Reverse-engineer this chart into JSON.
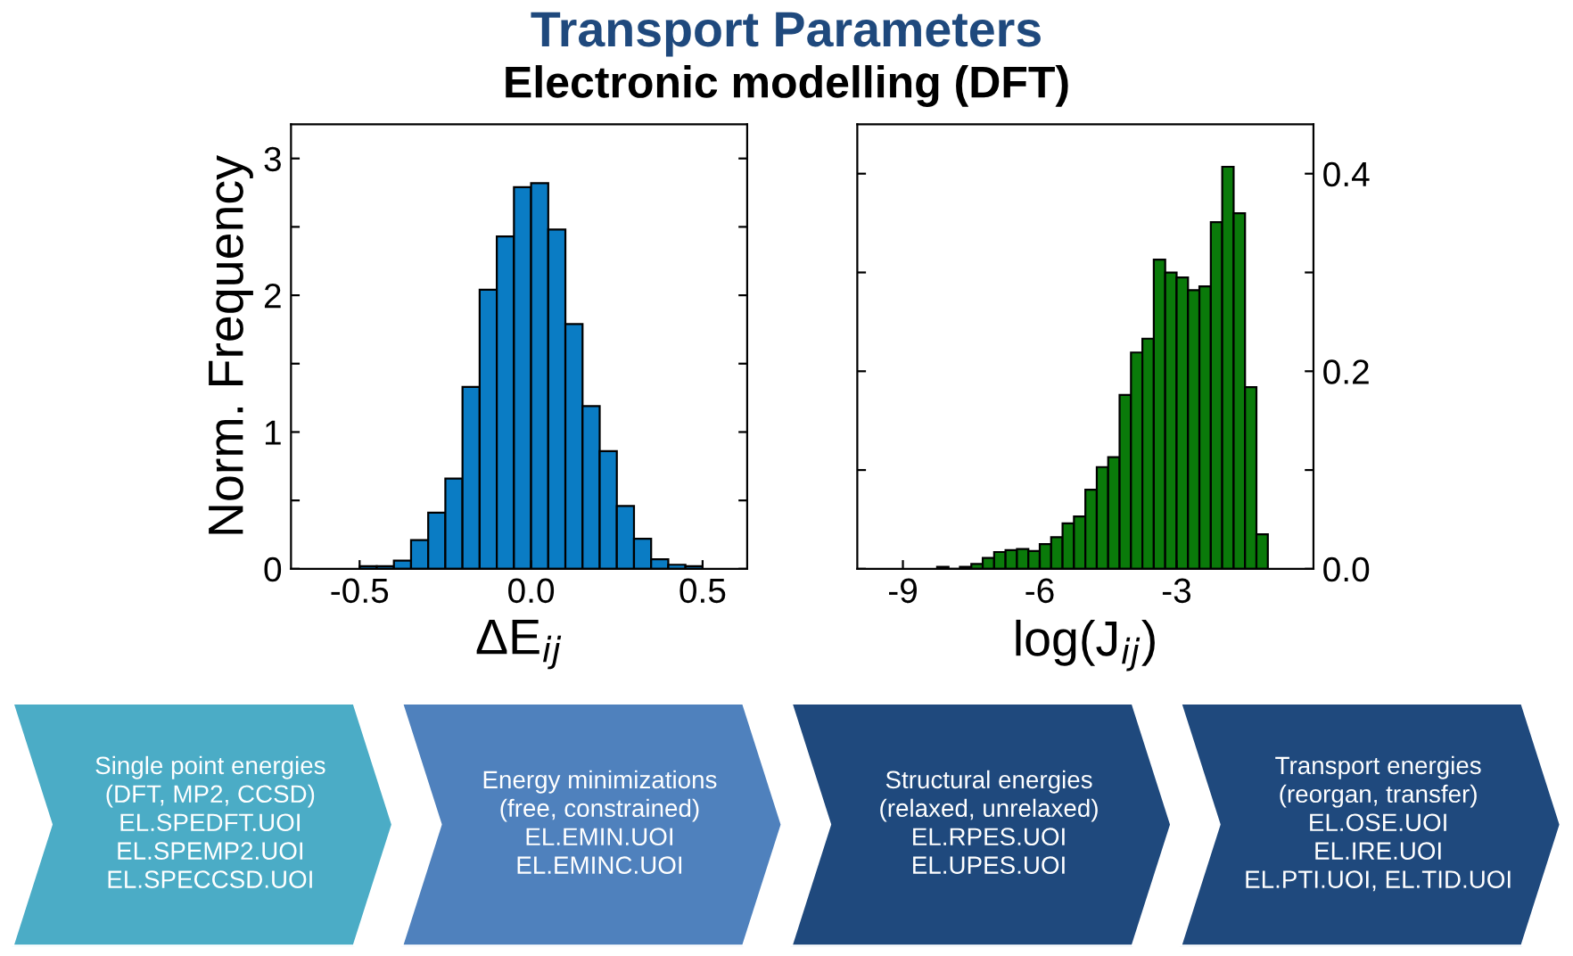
{
  "chart_data": [
    {
      "type": "histogram",
      "xlabel": "ΔE$_{ij}$",
      "ylabel": "Norm. Frequency",
      "color": "#0a7cc4",
      "bins": [
        -0.5,
        -0.45,
        -0.4,
        -0.35,
        -0.3,
        -0.25,
        -0.2,
        -0.15,
        -0.1,
        -0.05,
        0.0,
        0.05,
        0.1,
        0.15,
        0.2,
        0.25,
        0.3,
        0.35,
        0.4,
        0.45,
        0.5
      ],
      "values": [
        0.02,
        0.02,
        0.06,
        0.21,
        0.41,
        0.66,
        1.33,
        2.04,
        2.43,
        2.79,
        2.82,
        2.48,
        1.79,
        1.19,
        0.86,
        0.46,
        0.22,
        0.07,
        0.03,
        0.02
      ],
      "xlim": [
        -0.7,
        0.63
      ],
      "ylim": [
        0,
        3.25
      ],
      "xticks": [
        -0.5,
        {
          "value": 0.0,
          "label": "0.0"
        },
        0.5
      ],
      "yticks": [
        0,
        {
          "value": 0.5,
          "label": null
        },
        1,
        {
          "value": 1.5,
          "label": null
        },
        2,
        {
          "value": 2.5,
          "label": null
        },
        3
      ],
      "grid": false
    },
    {
      "type": "histogram",
      "xlabel": "log(J$_{ij}$)",
      "color": "#0a7a0a",
      "bins": [
        -8.25,
        -8.0,
        -7.75,
        -7.5,
        -7.25,
        -7.0,
        -6.75,
        -6.5,
        -6.25,
        -6.0,
        -5.75,
        -5.5,
        -5.25,
        -5.0,
        -4.75,
        -4.5,
        -4.25,
        -4.0,
        -3.75,
        -3.5,
        -3.25,
        -3.0,
        -2.75,
        -2.5,
        -2.25,
        -2.0,
        -1.75,
        -1.5,
        -1.25,
        -1.0
      ],
      "values": [
        0.002,
        0,
        0.002,
        0.005,
        0.011,
        0.017,
        0.019,
        0.02,
        0.018,
        0.025,
        0.032,
        0.046,
        0.053,
        0.08,
        0.103,
        0.113,
        0.176,
        0.219,
        0.233,
        0.313,
        0.3,
        0.295,
        0.282,
        0.286,
        0.351,
        0.407,
        0.36,
        0.184,
        0.035
      ],
      "xlim": [
        -10,
        0
      ],
      "ylim": [
        0,
        0.45
      ],
      "xticks": [
        -9,
        -6,
        -3
      ],
      "yticks": [
        {
          "value": 0.0,
          "label": "0.0"
        },
        {
          "value": 0.1,
          "label": null
        },
        {
          "value": 0.2,
          "label": "0.2"
        },
        {
          "value": 0.3,
          "label": null
        },
        {
          "value": 0.4,
          "label": "0.4"
        }
      ],
      "grid": false
    },
    {
      "type": "other",
      "title": "Transport Parameters",
      "subtitle": "Electronic modelling (DFT)",
      "annotations": [
        "Single point energies\n(DFT, MP2, CCSD)\nEL.SPEDFT.UOI\nEL.SPEMP2.UOI\nEL.SPECCSD.UOI",
        "Energy minimizations\n(free, constrained)\nEL.EMIN.UOI\nEL.EMINC.UOI",
        "Structural energies\n(relaxed, unrelaxed)\nEL.RPES.UOI\nEL.UPES.UOI",
        "Transport energies\n(reorgan, transfer)\nEL.OSE.UOI\nEL.IRE.UOI\nEL.PTI.UOI, EL.TID.UOI"
      ]
    }
  ]
}
